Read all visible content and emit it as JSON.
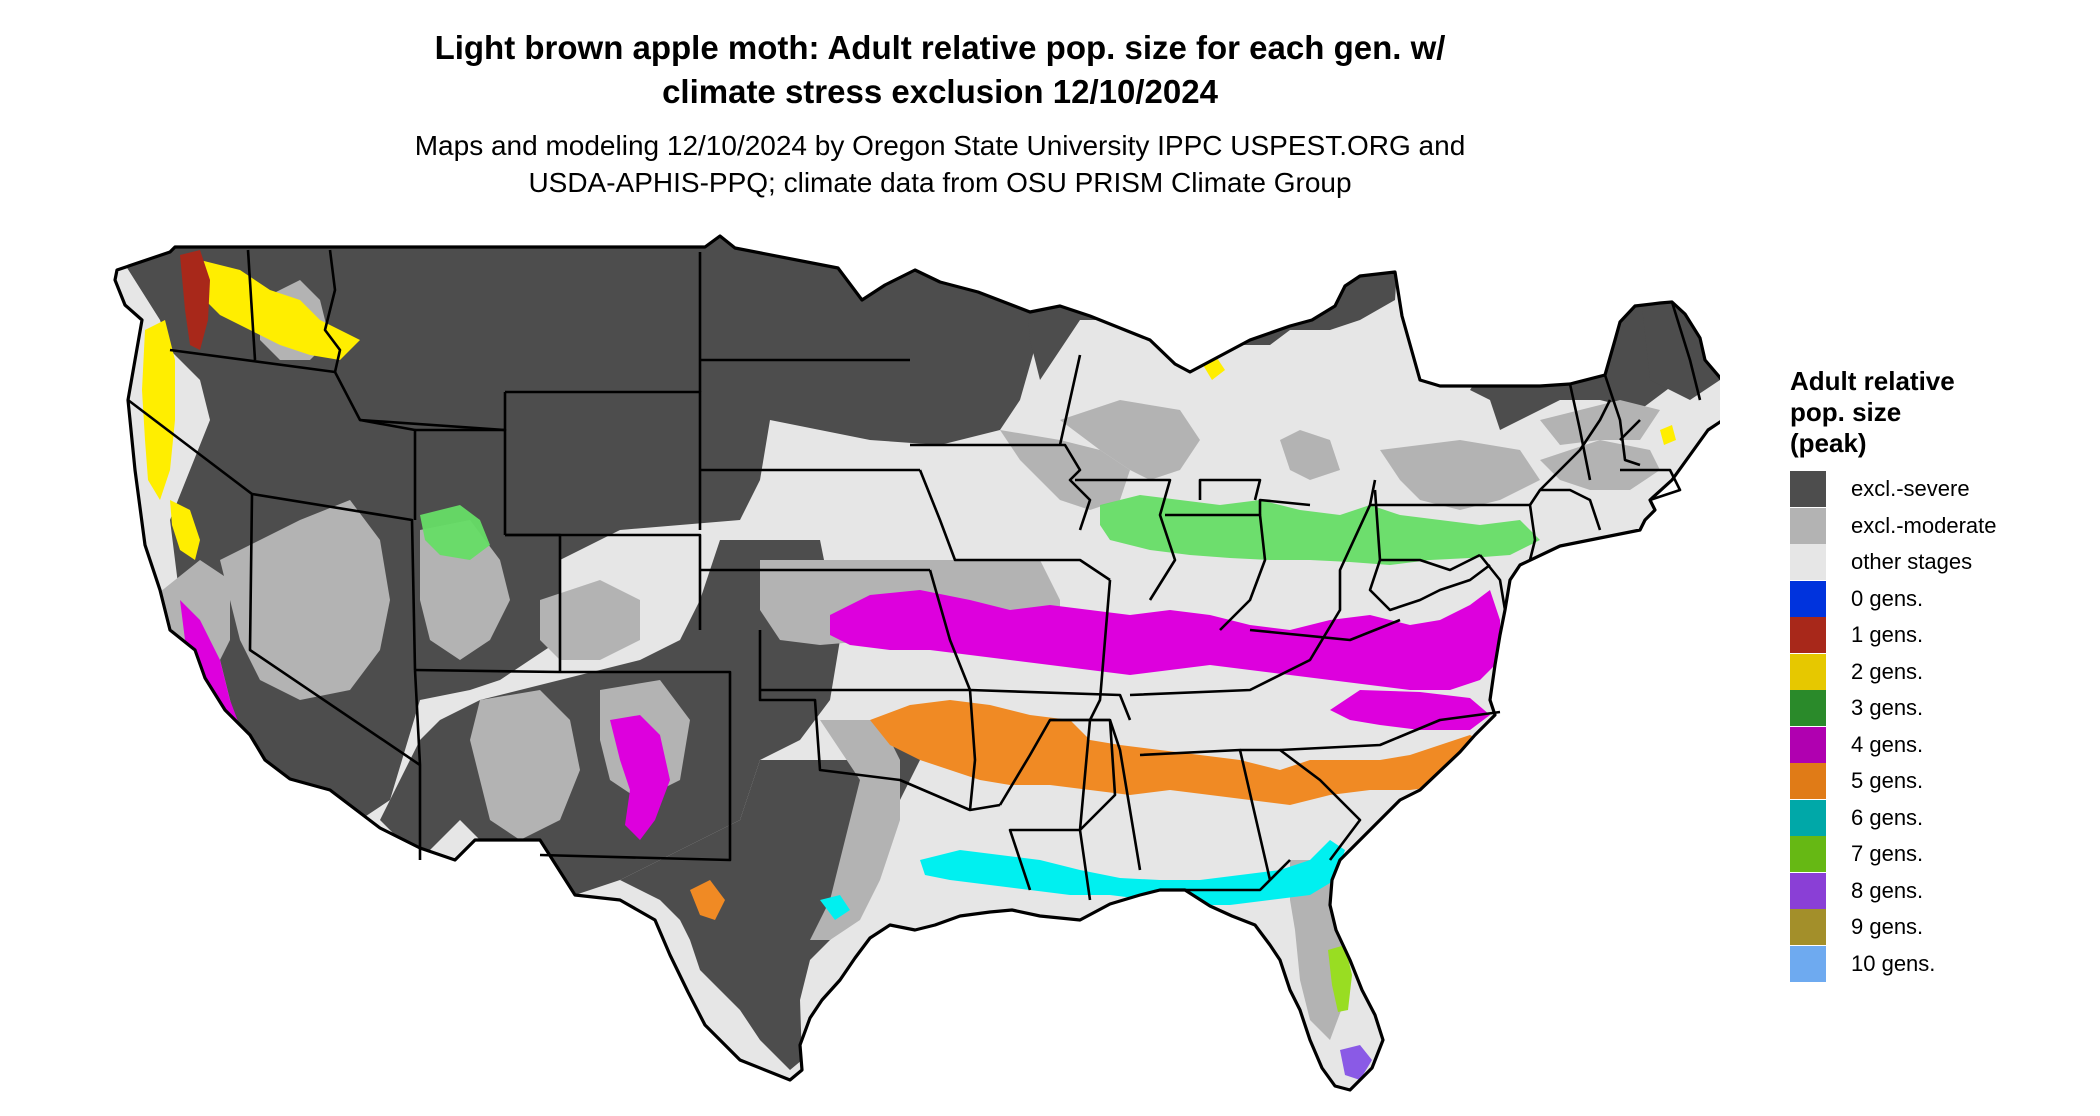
{
  "header": {
    "title_line1": "Light brown apple moth: Adult relative pop. size for each gen. w/",
    "title_line2": "climate stress exclusion 12/10/2024",
    "subtitle_line1": "Maps and modeling 12/10/2024 by Oregon State University IPPC USPEST.ORG and",
    "subtitle_line2": "USDA-APHIS-PPQ; climate data from OSU PRISM Climate Group"
  },
  "legend": {
    "title_line1": "Adult relative",
    "title_line2": "pop. size",
    "title_line3": "(peak)",
    "items": [
      {
        "label": "excl.-severe",
        "color": "#4d4d4d"
      },
      {
        "label": "excl.-moderate",
        "color": "#b3b3b3"
      },
      {
        "label": "other stages",
        "color": "#e6e6e6"
      },
      {
        "label": "0 gens.",
        "color": "#0033dd"
      },
      {
        "label": "1 gens.",
        "color": "#a8281a"
      },
      {
        "label": "2 gens.",
        "color": "#e6c800"
      },
      {
        "label": "3 gens.",
        "color": "#2a8a2a"
      },
      {
        "label": "4 gens.",
        "color": "#b000b0"
      },
      {
        "label": "5 gens.",
        "color": "#e07b17"
      },
      {
        "label": "6 gens.",
        "color": "#00a8a8"
      },
      {
        "label": "7 gens.",
        "color": "#66b814"
      },
      {
        "label": "8 gens.",
        "color": "#8a3fd6"
      },
      {
        "label": "9 gens.",
        "color": "#a38f2a"
      },
      {
        "label": "10 gens.",
        "color": "#6eaaf0"
      }
    ]
  },
  "map": {
    "background_color": "#ffffff",
    "border_color": "#000000",
    "bands": {
      "magenta": "#dd00dd",
      "orange": "#f08a24",
      "cyan": "#00f0f0",
      "green": "#66dd66",
      "yellow": "#ffee00",
      "red": "#a8281a",
      "lime": "#99dd22",
      "purple": "#8a5ae6"
    }
  }
}
